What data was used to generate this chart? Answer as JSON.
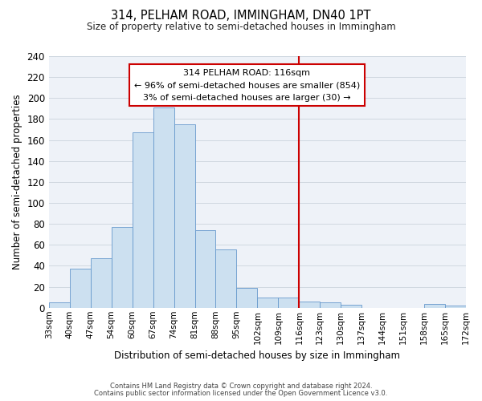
{
  "title": "314, PELHAM ROAD, IMMINGHAM, DN40 1PT",
  "subtitle": "Size of property relative to semi-detached houses in Immingham",
  "xlabel": "Distribution of semi-detached houses by size in Immingham",
  "ylabel": "Number of semi-detached properties",
  "footer_line1": "Contains HM Land Registry data © Crown copyright and database right 2024.",
  "footer_line2": "Contains public sector information licensed under the Open Government Licence v3.0.",
  "bin_labels": [
    "33sqm",
    "40sqm",
    "47sqm",
    "54sqm",
    "60sqm",
    "67sqm",
    "74sqm",
    "81sqm",
    "88sqm",
    "95sqm",
    "102sqm",
    "109sqm",
    "116sqm",
    "123sqm",
    "130sqm",
    "137sqm",
    "144sqm",
    "151sqm",
    "158sqm",
    "165sqm",
    "172sqm"
  ],
  "bar_heights": [
    5,
    37,
    47,
    77,
    167,
    191,
    175,
    74,
    56,
    19,
    10,
    10,
    6,
    5,
    3,
    0,
    0,
    0,
    4,
    2
  ],
  "bar_color": "#cce0f0",
  "bar_edge_color": "#6699cc",
  "grid_color": "#d0d8e0",
  "ref_line_color": "#cc0000",
  "ref_label_index": 12,
  "annotation_title": "314 PELHAM ROAD: 116sqm",
  "annotation_line1": "← 96% of semi-detached houses are smaller (854)",
  "annotation_line2": "3% of semi-detached houses are larger (30) →",
  "annotation_box_color": "#ffffff",
  "annotation_box_edge": "#cc0000",
  "ylim": [
    0,
    240
  ],
  "yticks": [
    0,
    20,
    40,
    60,
    80,
    100,
    120,
    140,
    160,
    180,
    200,
    220,
    240
  ],
  "bg_color": "#eef2f8"
}
